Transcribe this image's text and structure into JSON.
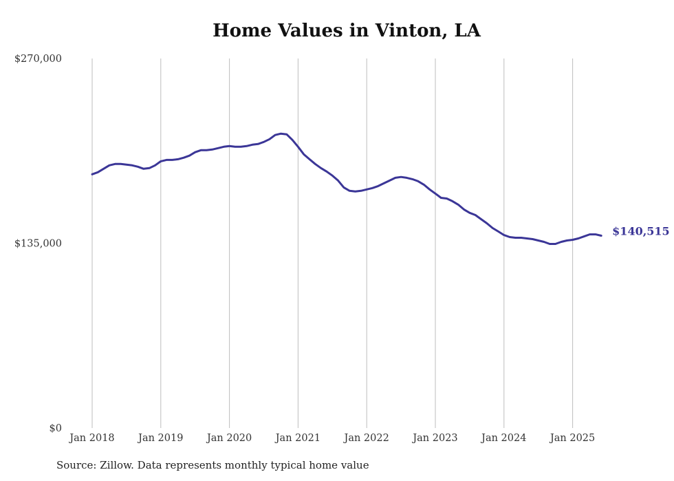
{
  "chart_data": {
    "type": "line",
    "title": "Home Values in Vinton, LA",
    "source": "Source: Zillow. Data represents monthly typical home value",
    "xlabel": "",
    "ylabel": "",
    "ylim": [
      0,
      270000
    ],
    "y_ticks": [
      {
        "value": 0,
        "label": "$0"
      },
      {
        "value": 135000,
        "label": "$135,000"
      },
      {
        "value": 270000,
        "label": "$270,000"
      }
    ],
    "x_ticks": [
      "Jan 2018",
      "Jan 2019",
      "Jan 2020",
      "Jan 2021",
      "Jan 2022",
      "Jan 2023",
      "Jan 2024",
      "Jan 2025"
    ],
    "x_start": "2018-01",
    "frequency": "monthly",
    "grid": "vertical",
    "line_color": "#3b3697",
    "end_label": "$140,515",
    "series": [
      {
        "name": "Typical home value",
        "values": [
          185400,
          186900,
          189400,
          191900,
          192900,
          192900,
          192400,
          191900,
          190900,
          189400,
          189900,
          191900,
          194900,
          195900,
          195900,
          196400,
          197500,
          199000,
          201500,
          203000,
          203000,
          203500,
          204500,
          205500,
          206000,
          205500,
          205500,
          206000,
          207000,
          207500,
          209000,
          211000,
          214100,
          215100,
          214600,
          210500,
          205500,
          200000,
          196400,
          192900,
          189900,
          187400,
          184400,
          180800,
          175800,
          173300,
          172800,
          173300,
          174300,
          175300,
          176800,
          178800,
          180800,
          182800,
          183400,
          182800,
          181800,
          180300,
          177800,
          174300,
          171300,
          168200,
          167700,
          165700,
          163200,
          159700,
          157200,
          155600,
          152600,
          149600,
          146100,
          143600,
          141000,
          139500,
          139000,
          139000,
          138500,
          138000,
          137000,
          136000,
          134500,
          134500,
          136000,
          137000,
          137500,
          138500,
          140000,
          141500,
          141500,
          140515
        ]
      }
    ]
  }
}
